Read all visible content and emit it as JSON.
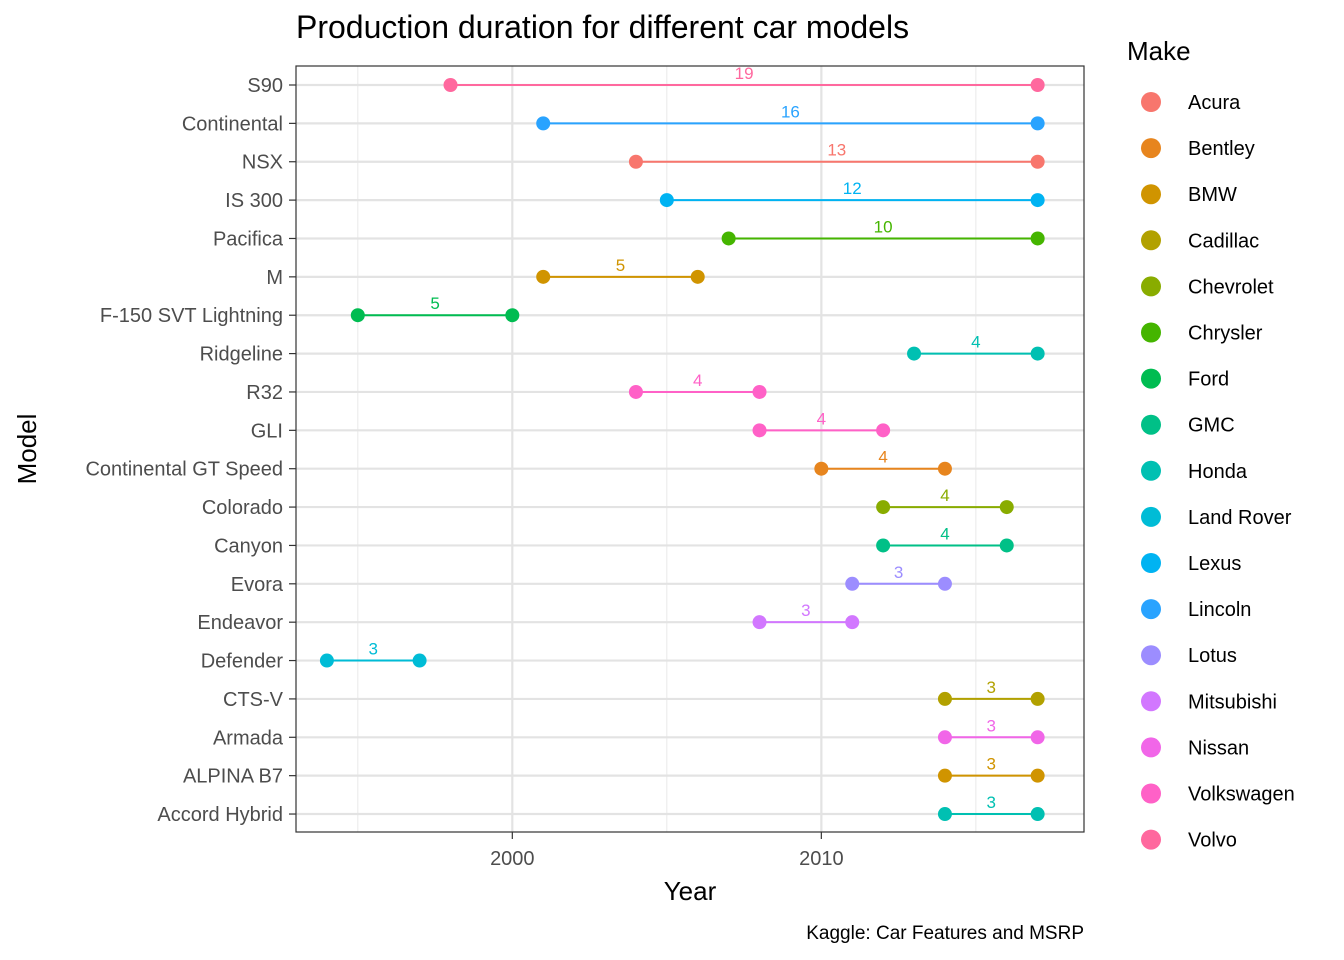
{
  "chart_data": {
    "type": "dumbbell",
    "title": "Production duration for different car models",
    "xlabel": "Year",
    "ylabel": "Model",
    "caption": "Kaggle: Car Features and MSRP",
    "xlim": [
      1993,
      2018.5
    ],
    "x_ticks": [
      2000,
      2010
    ],
    "x_tick_labels": [
      "2000",
      "2010"
    ],
    "grid": true,
    "legend": {
      "title": "Make",
      "position": "right",
      "entries": [
        {
          "name": "Acura",
          "color": "#F8766D"
        },
        {
          "name": "Bentley",
          "color": "#E7851E"
        },
        {
          "name": "BMW",
          "color": "#D09400"
        },
        {
          "name": "Cadillac",
          "color": "#B2A100"
        },
        {
          "name": "Chevrolet",
          "color": "#89AC00"
        },
        {
          "name": "Chrysler",
          "color": "#45B500"
        },
        {
          "name": "Ford",
          "color": "#00BC51"
        },
        {
          "name": "GMC",
          "color": "#00C087"
        },
        {
          "name": "Honda",
          "color": "#00C0B2"
        },
        {
          "name": "Land Rover",
          "color": "#00BCD6"
        },
        {
          "name": "Lexus",
          "color": "#00B3F2"
        },
        {
          "name": "Lincoln",
          "color": "#29A3FF"
        },
        {
          "name": "Lotus",
          "color": "#9C8DFF"
        },
        {
          "name": "Mitsubishi",
          "color": "#D277FF"
        },
        {
          "name": "Nissan",
          "color": "#F166E8"
        },
        {
          "name": "Volkswagen",
          "color": "#FF61C7"
        },
        {
          "name": "Volvo",
          "color": "#FF689E"
        }
      ]
    },
    "rows": [
      {
        "model": "S90",
        "make": "Volvo",
        "start": 1998,
        "end": 2017,
        "duration": 19
      },
      {
        "model": "Continental",
        "make": "Lincoln",
        "start": 2001,
        "end": 2017,
        "duration": 16
      },
      {
        "model": "NSX",
        "make": "Acura",
        "start": 2004,
        "end": 2017,
        "duration": 13
      },
      {
        "model": "IS 300",
        "make": "Lexus",
        "start": 2005,
        "end": 2017,
        "duration": 12
      },
      {
        "model": "Pacifica",
        "make": "Chrysler",
        "start": 2007,
        "end": 2017,
        "duration": 10
      },
      {
        "model": "M",
        "make": "BMW",
        "start": 2001,
        "end": 2006,
        "duration": 5
      },
      {
        "model": "F-150 SVT Lightning",
        "make": "Ford",
        "start": 1995,
        "end": 2000,
        "duration": 5
      },
      {
        "model": "Ridgeline",
        "make": "Honda",
        "start": 2013,
        "end": 2017,
        "duration": 4
      },
      {
        "model": "R32",
        "make": "Volkswagen",
        "start": 2004,
        "end": 2008,
        "duration": 4
      },
      {
        "model": "GLI",
        "make": "Volkswagen",
        "start": 2008,
        "end": 2012,
        "duration": 4
      },
      {
        "model": "Continental GT Speed",
        "make": "Bentley",
        "start": 2010,
        "end": 2014,
        "duration": 4
      },
      {
        "model": "Colorado",
        "make": "Chevrolet",
        "start": 2012,
        "end": 2016,
        "duration": 4
      },
      {
        "model": "Canyon",
        "make": "GMC",
        "start": 2012,
        "end": 2016,
        "duration": 4
      },
      {
        "model": "Evora",
        "make": "Lotus",
        "start": 2011,
        "end": 2014,
        "duration": 3
      },
      {
        "model": "Endeavor",
        "make": "Mitsubishi",
        "start": 2008,
        "end": 2011,
        "duration": 3
      },
      {
        "model": "Defender",
        "make": "Land Rover",
        "start": 1994,
        "end": 1997,
        "duration": 3
      },
      {
        "model": "CTS-V",
        "make": "Cadillac",
        "start": 2014,
        "end": 2017,
        "duration": 3
      },
      {
        "model": "Armada",
        "make": "Nissan",
        "start": 2014,
        "end": 2017,
        "duration": 3
      },
      {
        "model": "ALPINA B7",
        "make": "BMW",
        "start": 2014,
        "end": 2017,
        "duration": 3
      },
      {
        "model": "Accord Hybrid",
        "make": "Honda",
        "start": 2014,
        "end": 2017,
        "duration": 3
      }
    ]
  }
}
